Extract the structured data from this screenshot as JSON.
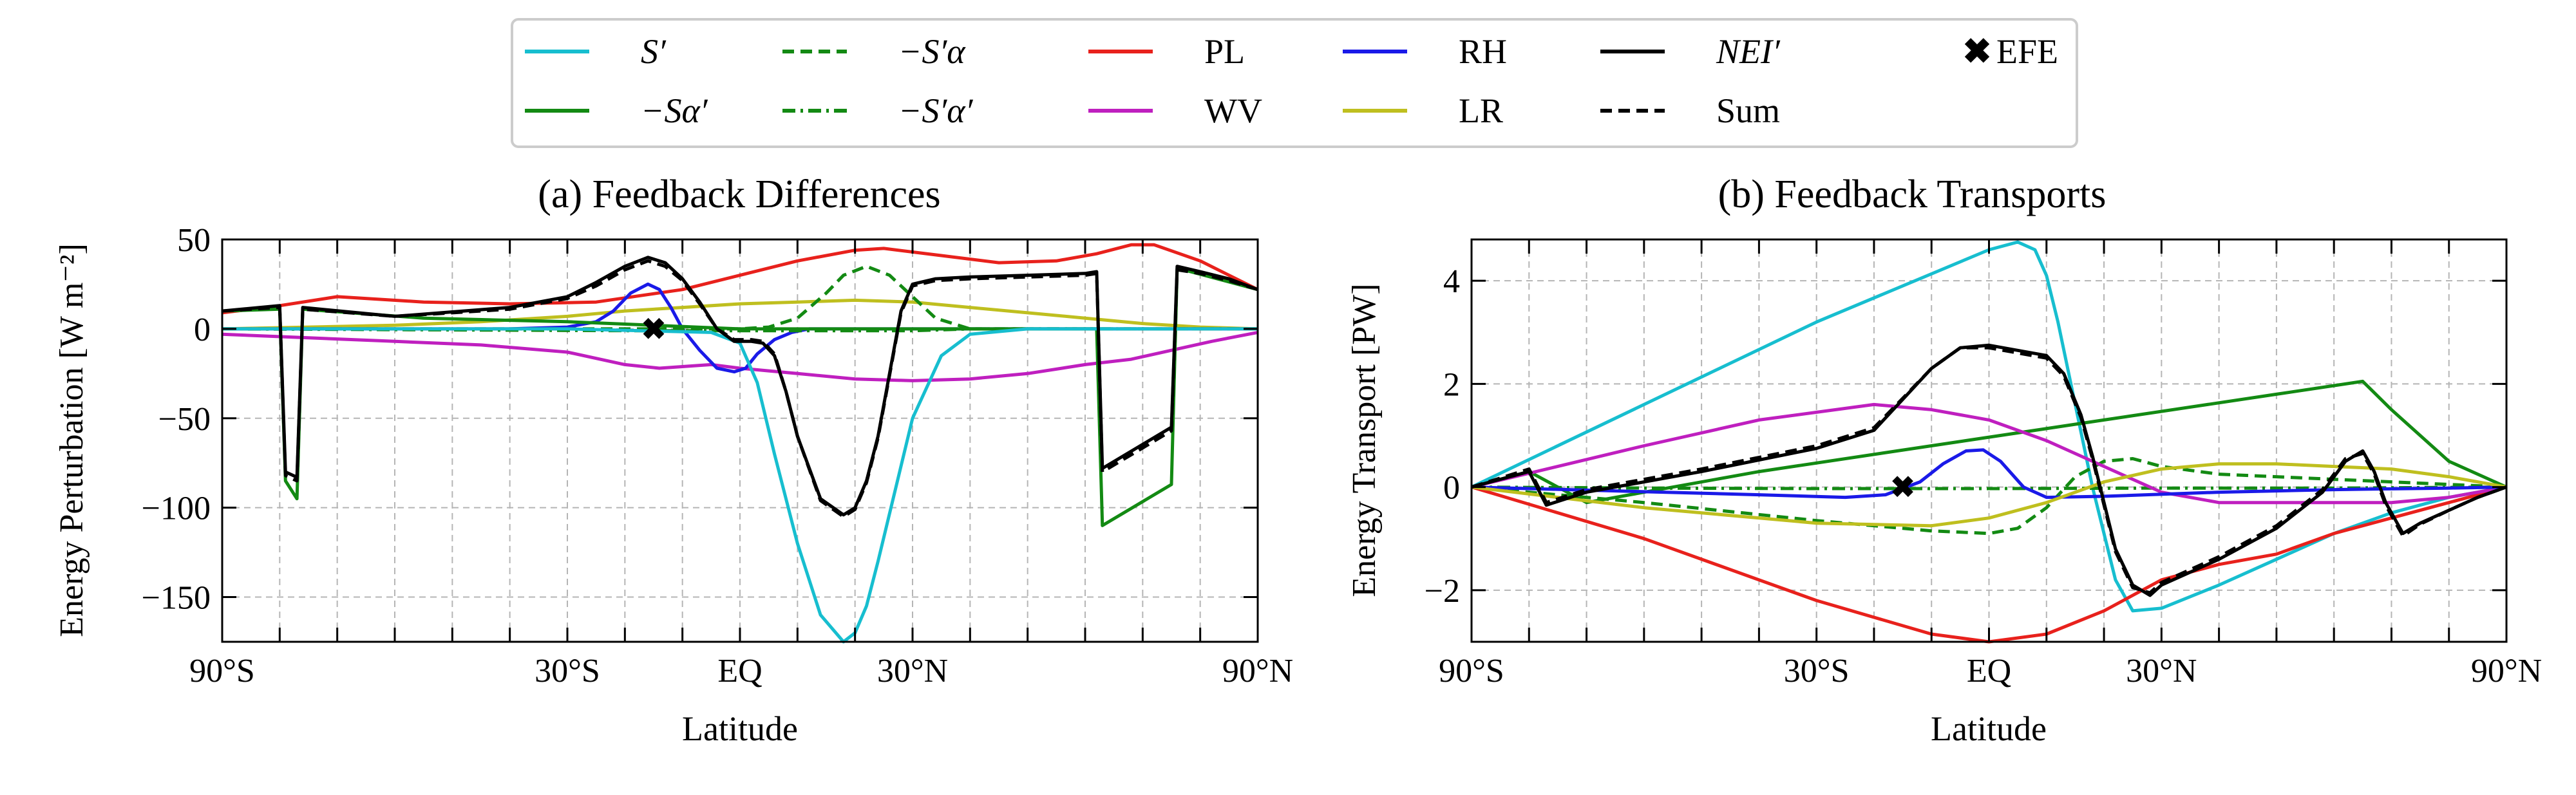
{
  "figure": {
    "legend": {
      "entries": [
        {
          "key": "S_prime",
          "label": "S′",
          "italic": true,
          "color": "#17becf",
          "dash": "solid"
        },
        {
          "key": "minus_S_alpha_prime",
          "label": "−Sα′",
          "italic": true,
          "color": "#138a13",
          "dash": "solid"
        },
        {
          "key": "minus_Sprime_alpha",
          "label": "−S′α",
          "italic": true,
          "color": "#138a13",
          "dash": "dashed"
        },
        {
          "key": "minus_Sprime_alphaprime",
          "label": "−S′α′",
          "italic": true,
          "color": "#138a13",
          "dash": "dashdot"
        },
        {
          "key": "PL",
          "label": "PL",
          "italic": false,
          "color": "#e8211c",
          "dash": "solid"
        },
        {
          "key": "WV",
          "label": "WV",
          "italic": false,
          "color": "#bf1fbf",
          "dash": "solid"
        },
        {
          "key": "RH",
          "label": "RH",
          "italic": false,
          "color": "#1a1ae8",
          "dash": "solid"
        },
        {
          "key": "LR",
          "label": "LR",
          "italic": false,
          "color": "#bfbf1f",
          "dash": "solid"
        },
        {
          "key": "NEI_prime",
          "label": "NEI′",
          "italic": true,
          "color": "#000000",
          "dash": "solid"
        },
        {
          "key": "Sum",
          "label": "Sum",
          "italic": false,
          "color": "#000000",
          "dash": "dashed"
        },
        {
          "key": "EFE",
          "label": "EFE",
          "italic": false,
          "color": "#e8211c",
          "marker": "X"
        }
      ]
    }
  },
  "chart_data": [
    {
      "type": "line",
      "title": "(a) Feedback Differences",
      "xlabel": "Latitude",
      "ylabel": "Energy Perturbation [W m⁻²]",
      "xlim": [
        -90,
        90
      ],
      "ylim": [
        -175,
        50
      ],
      "yticks": [
        50,
        0,
        -50,
        -100,
        -150
      ],
      "ytick_labels": [
        "50",
        "0",
        "−50",
        "−100",
        "−150"
      ],
      "xtick_labels": [
        {
          "x": -90,
          "label": "90°S"
        },
        {
          "x": -30,
          "label": "30°S"
        },
        {
          "x": 0,
          "label": "EQ"
        },
        {
          "x": 30,
          "label": "30°N"
        },
        {
          "x": 90,
          "label": "90°N"
        }
      ],
      "grid": true,
      "efe": {
        "x": -15,
        "y": 0
      },
      "series": [
        {
          "key": "PL",
          "x": [
            -90,
            -80,
            -70,
            -55,
            -40,
            -25,
            -10,
            0,
            10,
            20,
            25,
            35,
            45,
            55,
            62,
            68,
            72,
            80,
            90
          ],
          "y": [
            9,
            13,
            18,
            15,
            14,
            15,
            22,
            30,
            38,
            44,
            45,
            41,
            37,
            38,
            42,
            47,
            47,
            38,
            22
          ]
        },
        {
          "key": "WV",
          "x": [
            -90,
            -75,
            -60,
            -45,
            -30,
            -20,
            -14,
            -5,
            0,
            10,
            20,
            30,
            40,
            50,
            60,
            68,
            75,
            82,
            90
          ],
          "y": [
            -3,
            -5,
            -7,
            -9,
            -13,
            -20,
            -22,
            -20,
            -22,
            -25,
            -28,
            -29,
            -28,
            -25,
            -20,
            -17,
            -12,
            -7,
            -2
          ]
        },
        {
          "key": "LR",
          "x": [
            -90,
            -75,
            -60,
            -45,
            -30,
            -20,
            -10,
            0,
            10,
            20,
            30,
            40,
            50,
            60,
            70,
            80,
            90
          ],
          "y": [
            0,
            1,
            2,
            4,
            7,
            10,
            12,
            14,
            15,
            16,
            15,
            12,
            9,
            6,
            3,
            1,
            0
          ]
        },
        {
          "key": "RH",
          "x": [
            -90,
            -60,
            -40,
            -30,
            -25,
            -22,
            -19,
            -16,
            -14,
            -12,
            -10,
            -7,
            -4,
            -1,
            1,
            3,
            6,
            9,
            12,
            20,
            40,
            60,
            90
          ],
          "y": [
            0,
            0,
            0,
            1,
            4,
            10,
            20,
            25,
            22,
            12,
            0,
            -12,
            -22,
            -24,
            -22,
            -14,
            -6,
            -2,
            0,
            0,
            0,
            0,
            0
          ]
        },
        {
          "key": "minus_Sprime_alpha",
          "x": [
            -90,
            -20,
            0,
            5,
            10,
            15,
            18,
            22,
            26,
            30,
            34,
            40,
            90
          ],
          "y": [
            0,
            0,
            0,
            1,
            6,
            20,
            30,
            35,
            30,
            18,
            6,
            0,
            0
          ]
        },
        {
          "key": "minus_Sprime_alphaprime",
          "x": [
            -90,
            -20,
            0,
            10,
            20,
            30,
            40,
            90
          ],
          "y": [
            0,
            -1,
            -1,
            -1,
            -1,
            -1,
            0,
            0
          ]
        },
        {
          "key": "minus_S_alpha_prime",
          "x": [
            -90,
            -80,
            -79,
            -77,
            -76,
            -55,
            -30,
            0,
            30,
            62,
            63,
            75,
            76,
            90
          ],
          "y": [
            10,
            11,
            -85,
            -95,
            11,
            6,
            4,
            0,
            0,
            0,
            -110,
            -87,
            34,
            22
          ]
        },
        {
          "key": "S_prime",
          "x": [
            -90,
            -30,
            -5,
            0,
            3,
            6,
            10,
            14,
            18,
            20,
            22,
            24,
            27,
            30,
            35,
            40,
            50,
            90
          ],
          "y": [
            0,
            0,
            -2,
            -8,
            -30,
            -70,
            -120,
            -160,
            -175,
            -170,
            -155,
            -130,
            -90,
            -50,
            -15,
            -3,
            0,
            0
          ]
        },
        {
          "key": "NEI_prime",
          "x": [
            -90,
            -80,
            -79,
            -77,
            -76,
            -60,
            -40,
            -30,
            -25,
            -20,
            -16,
            -13,
            -10,
            -7,
            -4,
            -1,
            2,
            4,
            6,
            8,
            10,
            14,
            18,
            20,
            22,
            24,
            26,
            28,
            30,
            34,
            40,
            50,
            60,
            62,
            63,
            75,
            76,
            80,
            85,
            90
          ],
          "y": [
            10,
            13,
            -80,
            -83,
            12,
            7,
            12,
            18,
            26,
            35,
            40,
            37,
            28,
            15,
            0,
            -7,
            -7,
            -8,
            -15,
            -35,
            -60,
            -95,
            -104,
            -100,
            -85,
            -60,
            -25,
            10,
            25,
            28,
            29,
            30,
            31,
            32,
            -78,
            -55,
            35,
            32,
            28,
            22
          ]
        },
        {
          "key": "Sum",
          "x": [
            -90,
            -80,
            -79,
            -77,
            -76,
            -60,
            -40,
            -30,
            -25,
            -20,
            -16,
            -13,
            -10,
            -7,
            -4,
            -1,
            2,
            4,
            6,
            8,
            10,
            14,
            18,
            20,
            22,
            24,
            26,
            28,
            30,
            34,
            40,
            50,
            60,
            62,
            63,
            75,
            76,
            80,
            85,
            90
          ],
          "y": [
            10,
            12,
            -82,
            -85,
            11,
            7,
            11,
            17,
            24,
            33,
            38,
            35,
            27,
            14,
            0,
            -6,
            -6,
            -7,
            -14,
            -35,
            -60,
            -96,
            -105,
            -101,
            -86,
            -61,
            -26,
            9,
            24,
            27,
            28,
            29,
            30,
            31,
            -80,
            -57,
            33,
            31,
            27,
            22
          ]
        }
      ]
    },
    {
      "type": "line",
      "title": "(b) Feedback Transports",
      "xlabel": "Latitude",
      "ylabel": "Energy Transport [PW]",
      "xlim": [
        -90,
        90
      ],
      "ylim": [
        -3,
        4.8
      ],
      "yticks": [
        4,
        2,
        0,
        -2
      ],
      "ytick_labels": [
        "4",
        "2",
        "0",
        "−2"
      ],
      "xtick_labels": [
        {
          "x": -90,
          "label": "90°S"
        },
        {
          "x": -30,
          "label": "30°S"
        },
        {
          "x": 0,
          "label": "EQ"
        },
        {
          "x": 30,
          "label": "30°N"
        },
        {
          "x": 90,
          "label": "90°N"
        }
      ],
      "grid": true,
      "efe": {
        "x": -15,
        "y": 0
      },
      "series": [
        {
          "key": "S_prime",
          "x": [
            -90,
            -60,
            -30,
            0,
            5,
            8,
            10,
            12,
            15,
            18,
            22,
            25,
            30,
            40,
            50,
            60,
            70,
            80,
            90
          ],
          "y": [
            0,
            1.6,
            3.2,
            4.6,
            4.75,
            4.6,
            4.1,
            3.2,
            1.6,
            0,
            -1.8,
            -2.4,
            -2.35,
            -1.9,
            -1.4,
            -0.9,
            -0.5,
            -0.2,
            0
          ]
        },
        {
          "key": "minus_S_alpha_prime",
          "x": [
            -90,
            -80,
            -70,
            -40,
            -10,
            20,
            50,
            65,
            70,
            80,
            90
          ],
          "y": [
            0,
            0.3,
            -0.3,
            0.3,
            0.8,
            1.3,
            1.8,
            2.05,
            1.5,
            0.5,
            0
          ]
        },
        {
          "key": "minus_Sprime_alpha",
          "x": [
            -90,
            -60,
            -30,
            -10,
            0,
            5,
            10,
            15,
            20,
            25,
            30,
            40,
            60,
            80,
            90
          ],
          "y": [
            0,
            -0.3,
            -0.65,
            -0.85,
            -0.9,
            -0.8,
            -0.4,
            0.2,
            0.5,
            0.55,
            0.4,
            0.25,
            0.15,
            0.05,
            0
          ]
        },
        {
          "key": "minus_Sprime_alphaprime",
          "x": [
            -90,
            -60,
            -30,
            0,
            30,
            60,
            90
          ],
          "y": [
            0,
            -0.02,
            -0.03,
            -0.03,
            -0.02,
            -0.02,
            0
          ]
        },
        {
          "key": "PL",
          "x": [
            -90,
            -60,
            -30,
            -10,
            0,
            10,
            20,
            30,
            40,
            50,
            60,
            70,
            80,
            90
          ],
          "y": [
            0,
            -1,
            -2.2,
            -2.85,
            -3,
            -2.85,
            -2.4,
            -1.8,
            -1.5,
            -1.3,
            -0.9,
            -0.6,
            -0.3,
            0
          ]
        },
        {
          "key": "WV",
          "x": [
            -90,
            -60,
            -40,
            -20,
            -10,
            0,
            10,
            20,
            30,
            40,
            50,
            60,
            70,
            80,
            90
          ],
          "y": [
            0,
            0.8,
            1.3,
            1.6,
            1.5,
            1.3,
            0.9,
            0.4,
            -0.1,
            -0.3,
            -0.3,
            -0.3,
            -0.3,
            -0.2,
            0
          ]
        },
        {
          "key": "RH",
          "x": [
            -90,
            -40,
            -25,
            -18,
            -12,
            -8,
            -4,
            -1,
            2,
            6,
            10,
            20,
            40,
            60,
            80,
            90
          ],
          "y": [
            0,
            -0.15,
            -0.2,
            -0.15,
            0.1,
            0.45,
            0.7,
            0.72,
            0.5,
            0,
            -0.2,
            -0.18,
            -0.1,
            -0.05,
            -0.02,
            0
          ]
        },
        {
          "key": "LR",
          "x": [
            -90,
            -60,
            -30,
            -10,
            0,
            10,
            20,
            30,
            40,
            50,
            60,
            70,
            80,
            90
          ],
          "y": [
            0,
            -0.4,
            -0.7,
            -0.75,
            -0.6,
            -0.3,
            0.1,
            0.35,
            0.45,
            0.45,
            0.4,
            0.35,
            0.2,
            0
          ]
        },
        {
          "key": "NEI_prime",
          "x": [
            -90,
            -80,
            -77,
            -70,
            -50,
            -30,
            -20,
            -15,
            -10,
            -5,
            0,
            5,
            10,
            13,
            16,
            18,
            20,
            22,
            25,
            28,
            30,
            40,
            50,
            58,
            60,
            62,
            65,
            67,
            69,
            72,
            75,
            80,
            85,
            90
          ],
          "y": [
            0,
            0.3,
            -0.35,
            -0.1,
            0.3,
            0.75,
            1.1,
            1.7,
            2.3,
            2.7,
            2.75,
            2.65,
            2.55,
            2.2,
            1.4,
            0.6,
            -0.3,
            -1.2,
            -1.9,
            -2.1,
            -1.9,
            -1.4,
            -0.8,
            -0.1,
            0.2,
            0.5,
            0.7,
            0.3,
            -0.3,
            -0.9,
            -0.7,
            -0.45,
            -0.2,
            0
          ]
        },
        {
          "key": "Sum",
          "x": [
            -90,
            -80,
            -77,
            -70,
            -50,
            -30,
            -20,
            -15,
            -10,
            -5,
            0,
            5,
            10,
            13,
            16,
            18,
            20,
            22,
            25,
            28,
            30,
            40,
            50,
            58,
            60,
            62,
            65,
            67,
            69,
            72,
            75,
            80,
            85,
            90
          ],
          "y": [
            0,
            0.35,
            -0.3,
            -0.05,
            0.35,
            0.8,
            1.15,
            1.72,
            2.3,
            2.7,
            2.7,
            2.6,
            2.5,
            2.15,
            1.35,
            0.55,
            -0.35,
            -1.25,
            -1.95,
            -2.05,
            -1.85,
            -1.35,
            -0.75,
            -0.05,
            0.25,
            0.55,
            0.65,
            0.25,
            -0.35,
            -0.95,
            -0.72,
            -0.45,
            -0.2,
            0
          ]
        }
      ]
    }
  ]
}
